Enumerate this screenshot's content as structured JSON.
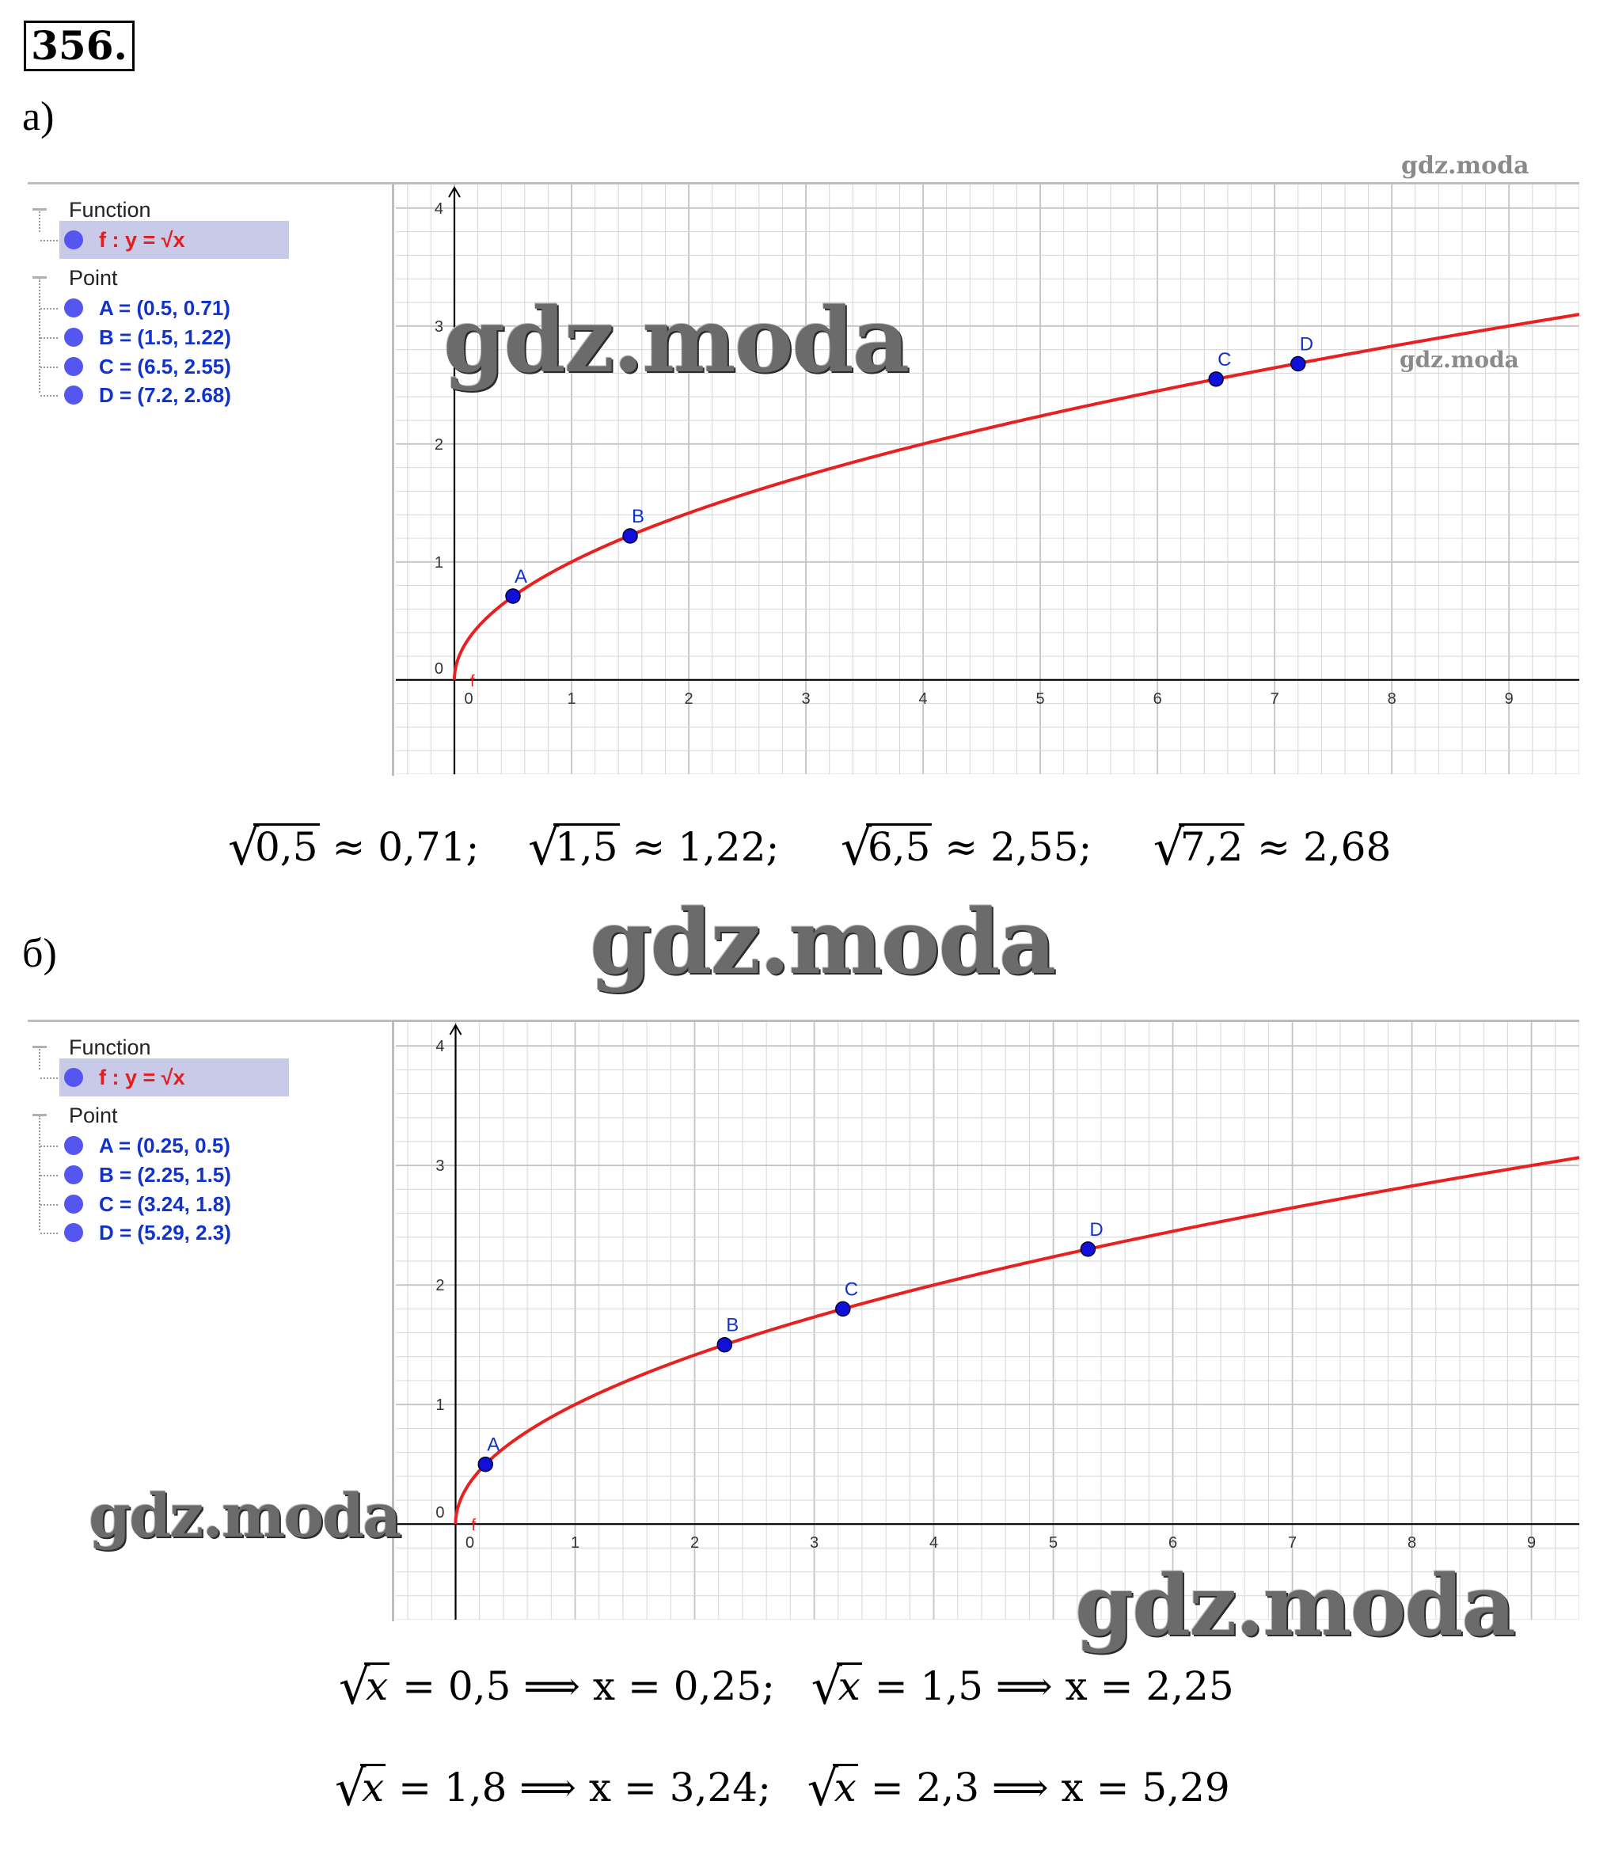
{
  "problem_number": "356.",
  "watermark": "gdz.moda",
  "part_a": {
    "label": "а)",
    "algebra": {
      "function_heading": "Function",
      "function_entry": "f : y = √x",
      "point_heading": "Point",
      "points": [
        {
          "text": "A = (0.5, 0.71)"
        },
        {
          "text": "B = (1.5, 1.22)"
        },
        {
          "text": "C = (6.5, 2.55)"
        },
        {
          "text": "D = (7.2, 2.68)"
        }
      ]
    },
    "equations": [
      {
        "radicand": "0,5",
        "rest": "≈ 0,71;"
      },
      {
        "radicand": "1,5",
        "rest": "≈ 1,22;"
      },
      {
        "radicand": "6,5",
        "rest": "≈ 2,55;"
      },
      {
        "radicand": "7,2",
        "rest": "≈ 2,68"
      }
    ]
  },
  "part_b": {
    "label": "б)",
    "algebra": {
      "function_heading": "Function",
      "function_entry": "f : y = √x",
      "point_heading": "Point",
      "points": [
        {
          "text": "A = (0.25, 0.5)"
        },
        {
          "text": "B = (2.25, 1.5)"
        },
        {
          "text": "C = (3.24, 1.8)"
        },
        {
          "text": "D = (5.29, 2.3)"
        }
      ]
    },
    "equations": [
      {
        "radicand": "x",
        "rest": "= 0,5 ⟹ x = 0,25;"
      },
      {
        "radicand": "x",
        "rest": "= 1,5 ⟹ x = 2,25"
      },
      {
        "radicand": "x",
        "rest": "= 1,8 ⟹ x = 3,24;"
      },
      {
        "radicand": "x",
        "rest": "= 2,3 ⟹ x = 5,29"
      }
    ]
  },
  "colors": {
    "curve": "#e82020",
    "point": "#1010d8",
    "point_label": "#1133cc",
    "grid": "#d6d6d6",
    "axis": "#000000"
  },
  "chart_data": [
    {
      "type": "line",
      "title": "",
      "function_label": "f",
      "xlim": [
        -0.5,
        9.6
      ],
      "ylim": [
        -0.8,
        4.2
      ],
      "x_ticks": [
        "0",
        "1",
        "2",
        "3",
        "4",
        "5",
        "6",
        "7",
        "8",
        "9"
      ],
      "y_ticks": [
        "0",
        "1",
        "2",
        "3",
        "4"
      ],
      "grid": true,
      "series": [
        {
          "function": "sqrt",
          "x_range": [
            0,
            9.6
          ]
        }
      ],
      "points": [
        {
          "label": "A",
          "x": 0.5,
          "y": 0.71
        },
        {
          "label": "B",
          "x": 1.5,
          "y": 1.22
        },
        {
          "label": "C",
          "x": 6.5,
          "y": 2.55
        },
        {
          "label": "D",
          "x": 7.2,
          "y": 2.68
        }
      ]
    },
    {
      "type": "line",
      "title": "",
      "function_label": "f",
      "xlim": [
        -0.5,
        9.4
      ],
      "ylim": [
        -0.8,
        4.2
      ],
      "x_ticks": [
        "0",
        "1",
        "2",
        "3",
        "4",
        "5",
        "6",
        "7",
        "8",
        "9"
      ],
      "y_ticks": [
        "0",
        "1",
        "2",
        "3",
        "4"
      ],
      "grid": true,
      "series": [
        {
          "function": "sqrt",
          "x_range": [
            0,
            9.4
          ]
        }
      ],
      "points": [
        {
          "label": "A",
          "x": 0.25,
          "y": 0.5
        },
        {
          "label": "B",
          "x": 2.25,
          "y": 1.5
        },
        {
          "label": "C",
          "x": 3.24,
          "y": 1.8
        },
        {
          "label": "D",
          "x": 5.29,
          "y": 2.3
        }
      ]
    }
  ]
}
